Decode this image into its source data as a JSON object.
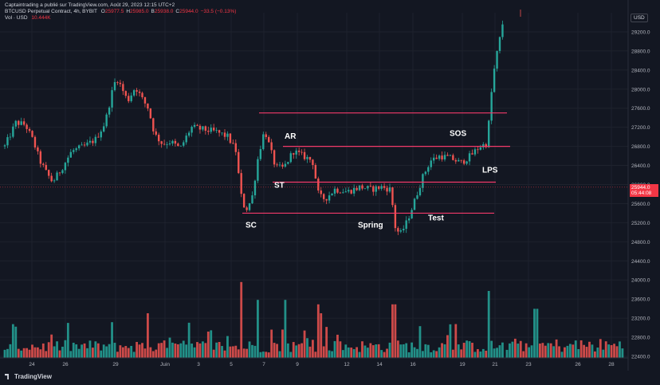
{
  "header": {
    "publisher": "Captaintrading a publié sur TradingView.com, Août 29, 2023 12:15 UTC+2",
    "symbol": "BTCUSD Perpetual Contract, 4h, BYBIT",
    "ohlc": [
      {
        "k": "O",
        "v": "25977.5"
      },
      {
        "k": "H",
        "v": "25985.0"
      },
      {
        "k": "B",
        "v": "25938.0"
      },
      {
        "k": "C",
        "v": "25944.0"
      },
      {
        "k": "",
        "v": "−33.5 (−0.13%)"
      }
    ],
    "vol_label": "Vol · USD",
    "vol_value": "10.444K"
  },
  "brand": "TradingView",
  "currency": "USD",
  "last_price": {
    "value": "25944.0",
    "countdown": "05:44:08"
  },
  "colors": {
    "background": "#131722",
    "up": "#26a69a",
    "down": "#ef5350",
    "levels": "#f23a6a",
    "text": "#d1d4dc",
    "header_values": "#f23645"
  },
  "chart_data": {
    "type": "candlestick",
    "y_ticks": [
      22400,
      22800,
      23200,
      23600,
      24000,
      24400,
      24800,
      25200,
      25600,
      26000,
      26400,
      26800,
      27200,
      27600,
      28000,
      28400,
      28800,
      29200
    ],
    "x_ticks": [
      {
        "label": "24",
        "x": 40
      },
      {
        "label": "26",
        "x": 82
      },
      {
        "label": "29",
        "x": 145
      },
      {
        "label": "Juin",
        "x": 207
      },
      {
        "label": "3",
        "x": 249
      },
      {
        "label": "5",
        "x": 290
      },
      {
        "label": "7",
        "x": 331
      },
      {
        "label": "9",
        "x": 373
      },
      {
        "label": "12",
        "x": 435
      },
      {
        "label": "14",
        "x": 476
      },
      {
        "label": "16",
        "x": 518
      },
      {
        "label": "19",
        "x": 580
      },
      {
        "label": "21",
        "x": 621
      },
      {
        "label": "23",
        "x": 663
      },
      {
        "label": "26",
        "x": 725
      },
      {
        "label": "28",
        "x": 767
      }
    ],
    "anchors": [
      {
        "x": 6,
        "p": 26800
      },
      {
        "x": 20,
        "p": 27300
      },
      {
        "x": 32,
        "p": 27250
      },
      {
        "x": 42,
        "p": 26900
      },
      {
        "x": 50,
        "p": 26500
      },
      {
        "x": 58,
        "p": 26250
      },
      {
        "x": 66,
        "p": 26050
      },
      {
        "x": 76,
        "p": 26300
      },
      {
        "x": 90,
        "p": 26700
      },
      {
        "x": 106,
        "p": 26800
      },
      {
        "x": 120,
        "p": 26950
      },
      {
        "x": 132,
        "p": 27300
      },
      {
        "x": 140,
        "p": 27900
      },
      {
        "x": 146,
        "p": 28250
      },
      {
        "x": 152,
        "p": 28050
      },
      {
        "x": 160,
        "p": 27750
      },
      {
        "x": 170,
        "p": 28050
      },
      {
        "x": 178,
        "p": 27800
      },
      {
        "x": 186,
        "p": 27600
      },
      {
        "x": 194,
        "p": 27050
      },
      {
        "x": 204,
        "p": 26850
      },
      {
        "x": 214,
        "p": 26900
      },
      {
        "x": 226,
        "p": 26750
      },
      {
        "x": 240,
        "p": 27200
      },
      {
        "x": 256,
        "p": 27150
      },
      {
        "x": 272,
        "p": 27100
      },
      {
        "x": 286,
        "p": 27000
      },
      {
        "x": 296,
        "p": 26700
      },
      {
        "x": 302,
        "p": 25800
      },
      {
        "x": 308,
        "p": 25450
      },
      {
        "x": 316,
        "p": 25700
      },
      {
        "x": 324,
        "p": 26600
      },
      {
        "x": 332,
        "p": 27150
      },
      {
        "x": 338,
        "p": 26800
      },
      {
        "x": 346,
        "p": 26350
      },
      {
        "x": 356,
        "p": 26350
      },
      {
        "x": 368,
        "p": 26700
      },
      {
        "x": 380,
        "p": 26600
      },
      {
        "x": 392,
        "p": 26500
      },
      {
        "x": 400,
        "p": 25750
      },
      {
        "x": 408,
        "p": 25700
      },
      {
        "x": 420,
        "p": 25900
      },
      {
        "x": 436,
        "p": 25850
      },
      {
        "x": 452,
        "p": 25950
      },
      {
        "x": 466,
        "p": 25900
      },
      {
        "x": 478,
        "p": 25950
      },
      {
        "x": 490,
        "p": 25900
      },
      {
        "x": 496,
        "p": 25100
      },
      {
        "x": 502,
        "p": 24950
      },
      {
        "x": 510,
        "p": 25200
      },
      {
        "x": 520,
        "p": 25650
      },
      {
        "x": 530,
        "p": 26150
      },
      {
        "x": 540,
        "p": 26500
      },
      {
        "x": 552,
        "p": 26600
      },
      {
        "x": 566,
        "p": 26550
      },
      {
        "x": 578,
        "p": 26450
      },
      {
        "x": 590,
        "p": 26600
      },
      {
        "x": 602,
        "p": 26800
      },
      {
        "x": 610,
        "p": 26850
      },
      {
        "x": 614,
        "p": 27400
      },
      {
        "x": 618,
        "p": 28200
      },
      {
        "x": 624,
        "p": 28800
      },
      {
        "x": 630,
        "p": 29300
      },
      {
        "x": 632,
        "p": 29600
      }
    ],
    "volume_spikes": [
      {
        "x": 302,
        "v": 0.85
      },
      {
        "x": 324,
        "v": 0.65
      },
      {
        "x": 358,
        "v": 0.65
      },
      {
        "x": 398,
        "v": 0.6
      },
      {
        "x": 402,
        "v": 0.5
      },
      {
        "x": 494,
        "v": 0.6
      },
      {
        "x": 613,
        "v": 0.75
      },
      {
        "x": 634,
        "v": 0.85
      },
      {
        "x": 672,
        "v": 0.55
      },
      {
        "x": 186,
        "v": 0.5
      },
      {
        "x": 140,
        "v": 0.4
      },
      {
        "x": 20,
        "v": 0.35
      }
    ],
    "levels": [
      {
        "price": 27500,
        "x1": 325,
        "x2": 636
      },
      {
        "price": 26800,
        "x1": 355,
        "x2": 640
      },
      {
        "price": 26050,
        "x1": 342,
        "x2": 622
      },
      {
        "price": 25400,
        "x1": 304,
        "x2": 620
      }
    ],
    "current_price_line": 25944,
    "annotations": [
      {
        "text": "SC",
        "x": 308,
        "p": 25100
      },
      {
        "text": "AR",
        "x": 357,
        "p": 26960
      },
      {
        "text": "ST",
        "x": 344,
        "p": 25930
      },
      {
        "text": "Spring",
        "x": 449,
        "p": 25100
      },
      {
        "text": "Test",
        "x": 537,
        "p": 25250
      },
      {
        "text": "SOS",
        "x": 564,
        "p": 27020
      },
      {
        "text": "LPS",
        "x": 605,
        "p": 26250
      }
    ]
  }
}
